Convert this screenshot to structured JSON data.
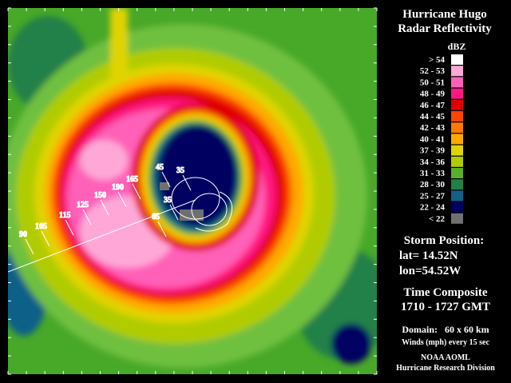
{
  "title": [
    "Hurricane Hugo",
    "Radar Reflectivity"
  ],
  "legend": {
    "unit": "dBZ",
    "items": [
      {
        "label": "> 54",
        "color": "#ffffff"
      },
      {
        "label": "52 - 53",
        "color": "#ffa8d8"
      },
      {
        "label": "50 - 51",
        "color": "#ff60b8"
      },
      {
        "label": "48 - 49",
        "color": "#ff1880"
      },
      {
        "label": "46 - 47",
        "color": "#e00000"
      },
      {
        "label": "44 - 45",
        "color": "#ff4400"
      },
      {
        "label": "42 - 43",
        "color": "#ff7a00"
      },
      {
        "label": "40 - 41",
        "color": "#ffa800"
      },
      {
        "label": "37 - 39",
        "color": "#e0d400"
      },
      {
        "label": "34 - 36",
        "color": "#b0cc00"
      },
      {
        "label": "31 - 33",
        "color": "#58b028"
      },
      {
        "label": "28 - 30",
        "color": "#208048"
      },
      {
        "label": "25 - 27",
        "color": "#106088"
      },
      {
        "label": "22 - 24",
        "color": "#000060"
      },
      {
        "label": "< 22",
        "color": "#707070"
      }
    ]
  },
  "storm_position": {
    "heading": "Storm Position:",
    "lat": "lat= 14.52N",
    "lon": "lon=54.52W"
  },
  "time": {
    "heading": "Time Composite",
    "range": "1710 - 1727 GMT"
  },
  "domain": {
    "size": "Domain:   60 x 60 km",
    "winds": "Winds (mph) every 15 sec"
  },
  "credit": [
    "NOAA AOML",
    "Hurricane Research Division"
  ],
  "wind_labels": [
    "90",
    "105",
    "115",
    "125",
    "150",
    "190",
    "165",
    "45",
    "35",
    "35",
    "65"
  ]
}
